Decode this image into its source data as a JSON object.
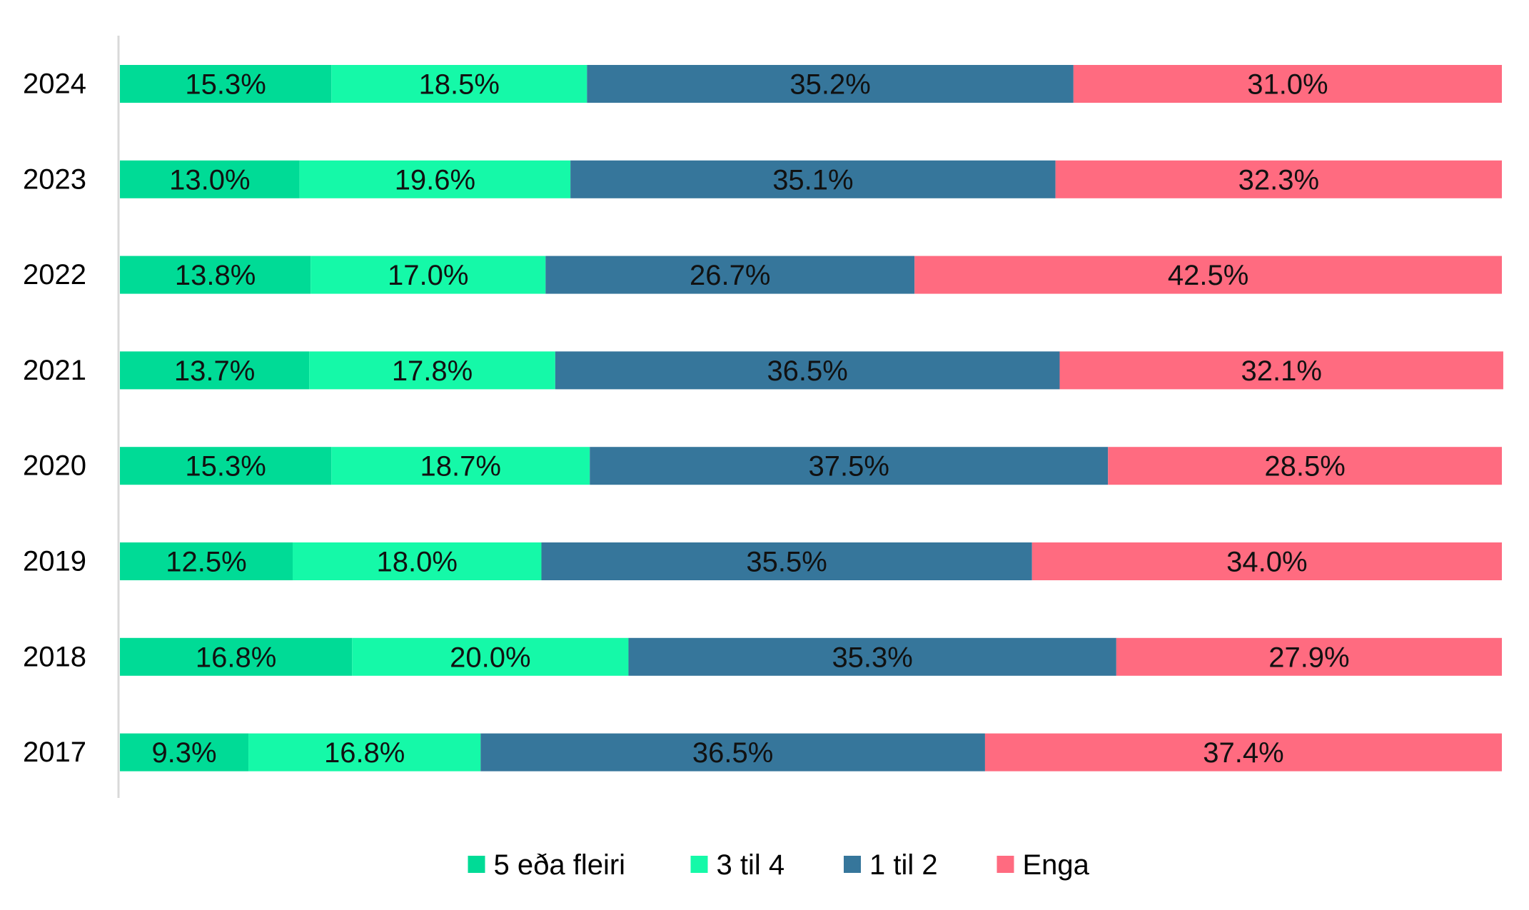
{
  "chart_data": {
    "type": "bar",
    "orientation": "horizontal",
    "stacked": "100%",
    "title": "",
    "xlabel": "",
    "ylabel": "",
    "xlim": [
      0,
      100
    ],
    "grid": false,
    "legend_position": "bottom",
    "categories": [
      "2024",
      "2023",
      "2022",
      "2021",
      "2020",
      "2019",
      "2018",
      "2017"
    ],
    "series": [
      {
        "name": "5 eða fleiri",
        "color": "#00DB96",
        "values": [
          15.3,
          13.0,
          13.8,
          13.7,
          15.3,
          12.5,
          16.8,
          9.3
        ],
        "labels": [
          "15.3%",
          "13.0%",
          "13.8%",
          "13.7%",
          "15.3%",
          "12.5%",
          "16.8%",
          "9.3%"
        ]
      },
      {
        "name": "3 til 4",
        "color": "#15F9A8",
        "values": [
          18.5,
          19.6,
          17.0,
          17.8,
          18.7,
          18.0,
          20.0,
          16.8
        ],
        "labels": [
          "18.5%",
          "19.6%",
          "17.0%",
          "17.8%",
          "18.7%",
          "18.0%",
          "20.0%",
          "16.8%"
        ]
      },
      {
        "name": "1 til 2",
        "color": "#36769B",
        "values": [
          35.2,
          35.1,
          26.7,
          36.5,
          37.5,
          35.5,
          35.3,
          36.5
        ],
        "labels": [
          "35.2%",
          "35.1%",
          "26.7%",
          "36.5%",
          "37.5%",
          "35.5%",
          "35.3%",
          "36.5%"
        ]
      },
      {
        "name": "Enga",
        "color": "#FF6B80",
        "values": [
          31.0,
          32.3,
          42.5,
          32.1,
          28.5,
          34.0,
          27.9,
          37.4
        ],
        "labels": [
          "31.0%",
          "32.3%",
          "42.5%",
          "32.1%",
          "28.5%",
          "34.0%",
          "27.9%",
          "37.4%"
        ]
      }
    ]
  }
}
